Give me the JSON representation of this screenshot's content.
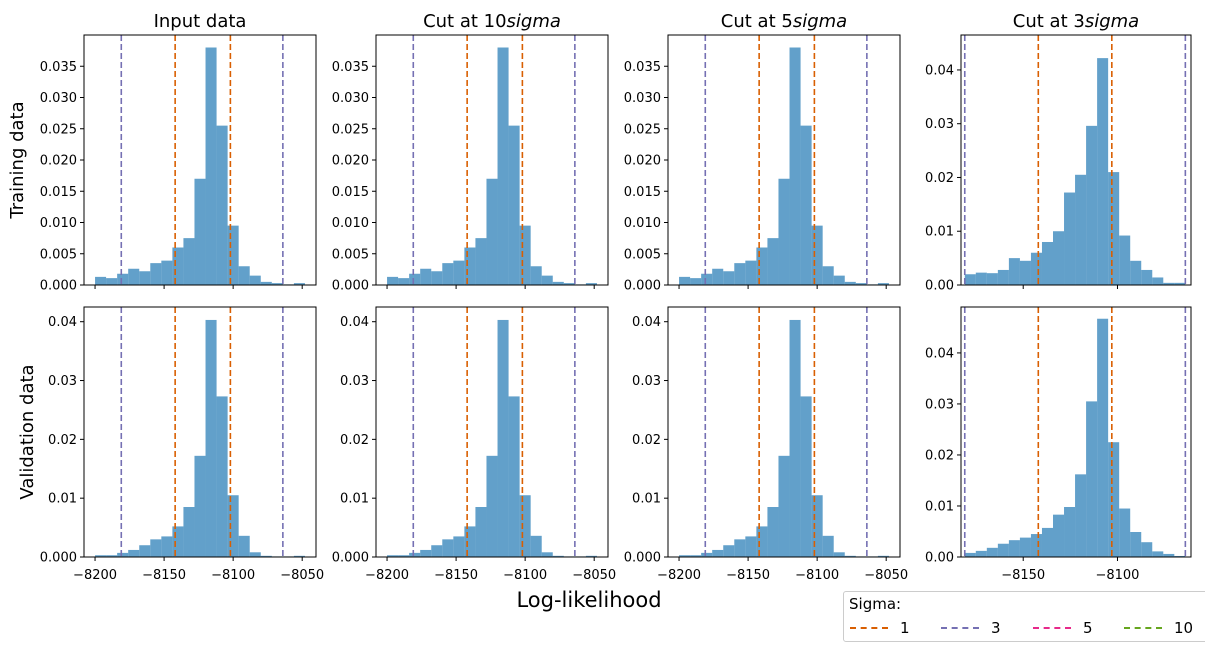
{
  "figure": {
    "row_labels": [
      "Training data",
      "Validation data"
    ],
    "col_titles": [
      "Input data",
      "Cut at 10",
      "Cut at 5",
      "Cut at 3"
    ],
    "title_suffix_italic": "sigma",
    "xlabel": "Log-likelihood"
  },
  "legend": {
    "title": "Sigma:",
    "items": [
      {
        "label": "1",
        "color": "#d95f02"
      },
      {
        "label": "3",
        "color": "#7570b3"
      },
      {
        "label": "5",
        "color": "#e7298a"
      },
      {
        "label": "10",
        "color": "#66a61e"
      }
    ]
  },
  "chart_data": [
    {
      "type": "bar",
      "row": "Training data",
      "col": "Input data",
      "bar_color": "#1f77b4",
      "xlim": [
        -8208,
        -8040
      ],
      "xticks": [
        -8200,
        -8150,
        -8100,
        -8050
      ],
      "xtick_labels": [
        "",
        "",
        "",
        ""
      ],
      "ylim": [
        0,
        0.04
      ],
      "yticks": [
        0,
        0.005,
        0.01,
        0.015,
        0.02,
        0.025,
        0.03,
        0.035
      ],
      "ytick_labels": [
        "0.000",
        "0.005",
        "0.010",
        "0.015",
        "0.020",
        "0.025",
        "0.030",
        "0.035"
      ],
      "bin_edges": [
        -8200,
        -8192,
        -8184,
        -8176,
        -8168,
        -8160,
        -8152,
        -8144,
        -8136,
        -8128,
        -8120,
        -8112,
        -8104,
        -8096,
        -8088,
        -8080,
        -8072,
        -8064,
        -8056,
        -8048
      ],
      "values": [
        0.0013,
        0.0011,
        0.0018,
        0.0026,
        0.0022,
        0.0035,
        0.0039,
        0.006,
        0.0075,
        0.017,
        0.038,
        0.0255,
        0.0095,
        0.003,
        0.0015,
        0.0005,
        0.0003,
        0.0001,
        0.0003
      ],
      "sigma_lines": {
        "1": [
          -8142,
          -8102
        ],
        "3": [
          -8181,
          -8064
        ]
      }
    },
    {
      "type": "bar",
      "row": "Training data",
      "col": "Cut at 10",
      "bar_color": "#1f77b4",
      "xlim": [
        -8208,
        -8040
      ],
      "xticks": [
        -8200,
        -8150,
        -8100,
        -8050
      ],
      "xtick_labels": [
        "",
        "",
        "",
        ""
      ],
      "ylim": [
        0,
        0.04
      ],
      "yticks": [
        0,
        0.005,
        0.01,
        0.015,
        0.02,
        0.025,
        0.03,
        0.035
      ],
      "ytick_labels": [
        "0.000",
        "0.005",
        "0.010",
        "0.015",
        "0.020",
        "0.025",
        "0.030",
        "0.035"
      ],
      "bin_edges": [
        -8200,
        -8192,
        -8184,
        -8176,
        -8168,
        -8160,
        -8152,
        -8144,
        -8136,
        -8128,
        -8120,
        -8112,
        -8104,
        -8096,
        -8088,
        -8080,
        -8072,
        -8064,
        -8056,
        -8048
      ],
      "values": [
        0.0013,
        0.0011,
        0.0018,
        0.0026,
        0.0022,
        0.0035,
        0.0039,
        0.006,
        0.0075,
        0.017,
        0.038,
        0.0255,
        0.0095,
        0.003,
        0.0015,
        0.0005,
        0.0003,
        0.0001,
        0.0003
      ],
      "sigma_lines": {
        "1": [
          -8142,
          -8102
        ],
        "3": [
          -8181,
          -8064
        ]
      }
    },
    {
      "type": "bar",
      "row": "Training data",
      "col": "Cut at 5",
      "bar_color": "#1f77b4",
      "xlim": [
        -8208,
        -8040
      ],
      "xticks": [
        -8200,
        -8150,
        -8100,
        -8050
      ],
      "xtick_labels": [
        "",
        "",
        "",
        ""
      ],
      "ylim": [
        0,
        0.04
      ],
      "yticks": [
        0,
        0.005,
        0.01,
        0.015,
        0.02,
        0.025,
        0.03,
        0.035
      ],
      "ytick_labels": [
        "0.000",
        "0.005",
        "0.010",
        "0.015",
        "0.020",
        "0.025",
        "0.030",
        "0.035"
      ],
      "bin_edges": [
        -8200,
        -8192,
        -8184,
        -8176,
        -8168,
        -8160,
        -8152,
        -8144,
        -8136,
        -8128,
        -8120,
        -8112,
        -8104,
        -8096,
        -8088,
        -8080,
        -8072,
        -8064,
        -8056,
        -8048
      ],
      "values": [
        0.0013,
        0.0011,
        0.0018,
        0.0026,
        0.0022,
        0.0035,
        0.0039,
        0.006,
        0.0075,
        0.017,
        0.038,
        0.0255,
        0.0095,
        0.003,
        0.0015,
        0.0005,
        0.0003,
        0.0001,
        0.0003
      ],
      "sigma_lines": {
        "1": [
          -8142,
          -8102
        ],
        "3": [
          -8181,
          -8064
        ]
      }
    },
    {
      "type": "bar",
      "row": "Training data",
      "col": "Cut at 3",
      "bar_color": "#1f77b4",
      "xlim": [
        -8183,
        -8061
      ],
      "xticks": [
        -8150,
        -8100
      ],
      "xtick_labels": [
        "",
        ""
      ],
      "ylim": [
        0,
        0.0465
      ],
      "yticks": [
        0,
        0.01,
        0.02,
        0.03,
        0.04
      ],
      "ytick_labels": [
        "0.00",
        "0.01",
        "0.02",
        "0.03",
        "0.04"
      ],
      "bin_edges": [
        -8181.0,
        -8175.15,
        -8169.3,
        -8163.45,
        -8157.6,
        -8151.75,
        -8145.9,
        -8140.05,
        -8134.2,
        -8128.35,
        -8122.5,
        -8116.65,
        -8110.8,
        -8104.95,
        -8099.1,
        -8093.25,
        -8087.4,
        -8081.55,
        -8075.7,
        -8069.85,
        -8064.0
      ],
      "values": [
        0.002,
        0.0023,
        0.0022,
        0.0028,
        0.005,
        0.0045,
        0.006,
        0.008,
        0.01,
        0.0172,
        0.0205,
        0.0296,
        0.0422,
        0.021,
        0.0092,
        0.0045,
        0.0028,
        0.0014,
        0.0004,
        0.0004
      ],
      "sigma_lines": {
        "1": [
          -8142,
          -8103
        ],
        "3": [
          -8181,
          -8064
        ]
      }
    },
    {
      "type": "bar",
      "row": "Validation data",
      "col": "Input data",
      "bar_color": "#1f77b4",
      "xlim": [
        -8208,
        -8040
      ],
      "xticks": [
        -8200,
        -8150,
        -8100,
        -8050
      ],
      "xtick_labels": [
        "−8200",
        "−8150",
        "−8100",
        "−8050"
      ],
      "ylim": [
        0,
        0.0425
      ],
      "yticks": [
        0,
        0.01,
        0.02,
        0.03,
        0.04
      ],
      "ytick_labels": [
        "0.000",
        "0.01",
        "0.02",
        "0.03",
        "0.04"
      ],
      "bin_edges": [
        -8200,
        -8192,
        -8184,
        -8176,
        -8168,
        -8160,
        -8152,
        -8144,
        -8136,
        -8128,
        -8120,
        -8112,
        -8104,
        -8096,
        -8088,
        -8080,
        -8072,
        -8064,
        -8056,
        -8048
      ],
      "values": [
        0.0003,
        0.0003,
        0.0007,
        0.0012,
        0.002,
        0.003,
        0.0035,
        0.0052,
        0.0085,
        0.0172,
        0.0403,
        0.0273,
        0.0105,
        0.0036,
        0.0008,
        0.0002,
        0.0001,
        0.0001,
        0.0002
      ],
      "sigma_lines": {
        "1": [
          -8142,
          -8102
        ],
        "3": [
          -8181,
          -8064
        ]
      }
    },
    {
      "type": "bar",
      "row": "Validation data",
      "col": "Cut at 10",
      "bar_color": "#1f77b4",
      "xlim": [
        -8208,
        -8040
      ],
      "xticks": [
        -8200,
        -8150,
        -8100,
        -8050
      ],
      "xtick_labels": [
        "−8200",
        "−8150",
        "−8100",
        "−8050"
      ],
      "ylim": [
        0,
        0.0425
      ],
      "yticks": [
        0,
        0.01,
        0.02,
        0.03,
        0.04
      ],
      "ytick_labels": [
        "0.000",
        "0.01",
        "0.02",
        "0.03",
        "0.04"
      ],
      "bin_edges": [
        -8200,
        -8192,
        -8184,
        -8176,
        -8168,
        -8160,
        -8152,
        -8144,
        -8136,
        -8128,
        -8120,
        -8112,
        -8104,
        -8096,
        -8088,
        -8080,
        -8072,
        -8064,
        -8056,
        -8048
      ],
      "values": [
        0.0003,
        0.0003,
        0.0007,
        0.0012,
        0.002,
        0.003,
        0.0035,
        0.0052,
        0.0085,
        0.0172,
        0.0403,
        0.0273,
        0.0105,
        0.0036,
        0.0008,
        0.0002,
        0.0001,
        0.0001,
        0.0002
      ],
      "sigma_lines": {
        "1": [
          -8142,
          -8102
        ],
        "3": [
          -8181,
          -8064
        ]
      }
    },
    {
      "type": "bar",
      "row": "Validation data",
      "col": "Cut at 5",
      "bar_color": "#1f77b4",
      "xlim": [
        -8208,
        -8040
      ],
      "xticks": [
        -8200,
        -8150,
        -8100,
        -8050
      ],
      "xtick_labels": [
        "−8200",
        "−8150",
        "−8100",
        "−8050"
      ],
      "ylim": [
        0,
        0.0425
      ],
      "yticks": [
        0,
        0.01,
        0.02,
        0.03,
        0.04
      ],
      "ytick_labels": [
        "0.000",
        "0.01",
        "0.02",
        "0.03",
        "0.04"
      ],
      "bin_edges": [
        -8200,
        -8192,
        -8184,
        -8176,
        -8168,
        -8160,
        -8152,
        -8144,
        -8136,
        -8128,
        -8120,
        -8112,
        -8104,
        -8096,
        -8088,
        -8080,
        -8072,
        -8064,
        -8056,
        -8048
      ],
      "values": [
        0.0003,
        0.0003,
        0.0007,
        0.0012,
        0.002,
        0.003,
        0.0035,
        0.0052,
        0.0085,
        0.0172,
        0.0403,
        0.0273,
        0.0105,
        0.0036,
        0.0008,
        0.0002,
        0.0001,
        0.0001,
        0.0002
      ],
      "sigma_lines": {
        "1": [
          -8142,
          -8102
        ],
        "3": [
          -8181,
          -8064
        ]
      }
    },
    {
      "type": "bar",
      "row": "Validation data",
      "col": "Cut at 3",
      "bar_color": "#1f77b4",
      "xlim": [
        -8183,
        -8061
      ],
      "xticks": [
        -8150,
        -8100
      ],
      "xtick_labels": [
        "−8150",
        "−8100"
      ],
      "ylim": [
        0,
        0.049
      ],
      "yticks": [
        0,
        0.01,
        0.02,
        0.03,
        0.04
      ],
      "ytick_labels": [
        "0.00",
        "0.01",
        "0.02",
        "0.03",
        "0.04"
      ],
      "bin_edges": [
        -8181.0,
        -8175.15,
        -8169.3,
        -8163.45,
        -8157.6,
        -8151.75,
        -8145.9,
        -8140.05,
        -8134.2,
        -8128.35,
        -8122.5,
        -8116.65,
        -8110.8,
        -8104.95,
        -8099.1,
        -8093.25,
        -8087.4,
        -8081.55,
        -8075.7,
        -8069.85,
        -8064.0
      ],
      "values": [
        0.0008,
        0.0012,
        0.0018,
        0.0026,
        0.0033,
        0.0038,
        0.0045,
        0.0057,
        0.0083,
        0.0098,
        0.0162,
        0.0305,
        0.0467,
        0.0225,
        0.0095,
        0.0049,
        0.0029,
        0.0011,
        0.0006,
        0.0002
      ],
      "sigma_lines": {
        "1": [
          -8142,
          -8103
        ],
        "3": [
          -8181,
          -8064
        ]
      }
    }
  ]
}
